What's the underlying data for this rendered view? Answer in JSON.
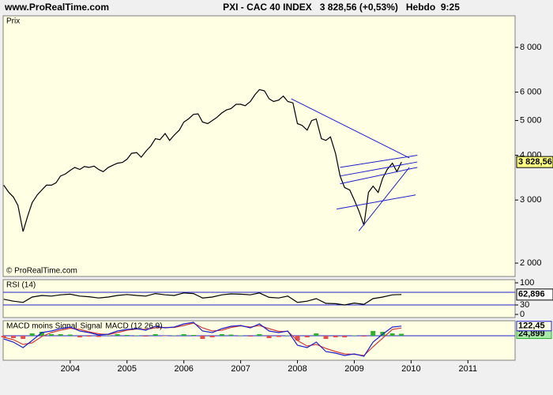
{
  "header": {
    "site": "www.ProRealTime.com",
    "title": "PXI - CAC 40 INDEX   3 828,56 (+0,53%)   Hebdo  9:25"
  },
  "chart_data": [
    {
      "type": "line",
      "ylabel": "Prix",
      "watermark": "© ProRealTime.com",
      "color": "#000000",
      "log_scale": true,
      "xlim": [
        2002.82,
        2011.83
      ],
      "ylim": [
        1835,
        9800
      ],
      "yticks": [
        {
          "value": 2000,
          "label": "2 000"
        },
        {
          "value": 3000,
          "label": "3 000"
        },
        {
          "value": 4000,
          "label": "4 000"
        },
        {
          "value": 5000,
          "label": "5 000"
        },
        {
          "value": 6000,
          "label": "6 000"
        },
        {
          "value": 8000,
          "label": "8 000"
        }
      ],
      "x": [
        2002.83,
        2002.92,
        2003.0,
        2003.08,
        2003.17,
        2003.25,
        2003.33,
        2003.42,
        2003.5,
        2003.58,
        2003.67,
        2003.75,
        2003.83,
        2003.92,
        2004.0,
        2004.08,
        2004.17,
        2004.25,
        2004.33,
        2004.42,
        2004.5,
        2004.58,
        2004.67,
        2004.75,
        2004.83,
        2004.92,
        2005.0,
        2005.08,
        2005.17,
        2005.25,
        2005.33,
        2005.42,
        2005.5,
        2005.58,
        2005.67,
        2005.75,
        2005.83,
        2005.92,
        2006.0,
        2006.08,
        2006.17,
        2006.25,
        2006.33,
        2006.42,
        2006.5,
        2006.58,
        2006.67,
        2006.75,
        2006.83,
        2006.92,
        2007.0,
        2007.08,
        2007.17,
        2007.25,
        2007.33,
        2007.42,
        2007.5,
        2007.58,
        2007.67,
        2007.75,
        2007.83,
        2007.92,
        2008.0,
        2008.08,
        2008.17,
        2008.25,
        2008.33,
        2008.42,
        2008.5,
        2008.58,
        2008.67,
        2008.75,
        2008.83,
        2008.92,
        2009.0,
        2009.08,
        2009.17,
        2009.25,
        2009.33,
        2009.42,
        2009.5,
        2009.58,
        2009.67,
        2009.75,
        2009.83
      ],
      "values": [
        3300,
        3150,
        3060,
        2900,
        2450,
        2700,
        2950,
        3100,
        3200,
        3300,
        3300,
        3350,
        3500,
        3550,
        3630,
        3700,
        3650,
        3720,
        3700,
        3730,
        3650,
        3600,
        3700,
        3750,
        3800,
        3820,
        3900,
        4050,
        4070,
        3950,
        4100,
        4250,
        4450,
        4420,
        4600,
        4400,
        4550,
        4700,
        4950,
        5050,
        5200,
        5220,
        4950,
        4900,
        5000,
        5100,
        5250,
        5350,
        5400,
        5550,
        5550,
        5500,
        5650,
        5900,
        6100,
        6050,
        5750,
        5650,
        5700,
        5850,
        5650,
        5600,
        4900,
        4850,
        4700,
        5000,
        5050,
        4450,
        4400,
        4500,
        4050,
        3500,
        3250,
        3200,
        3000,
        2800,
        2550,
        3150,
        3280,
        3150,
        3450,
        3650,
        3800,
        3600,
        3828.56
      ],
      "last_value": {
        "value": 3828.56,
        "label": "3 828,56"
      },
      "trendline_color": "#2020c8",
      "trendlines": [
        {
          "x": [
            2007.89,
            2009.97
          ],
          "y": [
            5750,
            3930
          ]
        },
        {
          "x": [
            2008.75,
            2010.11
          ],
          "y": [
            3700,
            4000
          ]
        },
        {
          "x": [
            2008.75,
            2010.11
          ],
          "y": [
            3500,
            3830
          ]
        },
        {
          "x": [
            2008.75,
            2010.11
          ],
          "y": [
            3330,
            3700
          ]
        },
        {
          "x": [
            2008.69,
            2010.08
          ],
          "y": [
            2830,
            3100
          ]
        },
        {
          "x": [
            2009.08,
            2009.97
          ],
          "y": [
            2460,
            3700
          ]
        }
      ]
    },
    {
      "type": "line",
      "label": "RSI (14)",
      "color": "#000000",
      "level_color": "#2020c8",
      "xlim": [
        2002.82,
        2011.83
      ],
      "ylim": [
        -10,
        110
      ],
      "yticks": [
        0,
        30,
        100
      ],
      "levels": [
        30,
        70
      ],
      "x": [
        2002.83,
        2003.0,
        2003.17,
        2003.33,
        2003.5,
        2003.67,
        2003.83,
        2004.0,
        2004.17,
        2004.33,
        2004.5,
        2004.67,
        2004.83,
        2005.0,
        2005.17,
        2005.33,
        2005.5,
        2005.67,
        2005.83,
        2006.0,
        2006.17,
        2006.33,
        2006.5,
        2006.67,
        2006.83,
        2007.0,
        2007.17,
        2007.33,
        2007.5,
        2007.67,
        2007.83,
        2008.0,
        2008.17,
        2008.33,
        2008.5,
        2008.67,
        2008.83,
        2009.0,
        2009.17,
        2009.33,
        2009.5,
        2009.67,
        2009.83
      ],
      "values": [
        48,
        42,
        38,
        55,
        60,
        58,
        62,
        64,
        58,
        56,
        52,
        55,
        60,
        63,
        60,
        58,
        66,
        62,
        60,
        68,
        66,
        52,
        55,
        62,
        65,
        64,
        62,
        68,
        54,
        52,
        58,
        38,
        42,
        50,
        35,
        34,
        30,
        36,
        32,
        50,
        55,
        62,
        62.896
      ],
      "last_value": {
        "value": 62.896,
        "label": "62,896"
      }
    },
    {
      "type": "macd",
      "level_color": "#2020c8",
      "levels": [
        0
      ],
      "xlim": [
        2002.82,
        2011.83
      ],
      "ylim": [
        -310,
        190
      ],
      "xticks": [
        2004,
        2005,
        2006,
        2007,
        2008,
        2009,
        2010,
        2011
      ],
      "x": [
        2002.83,
        2003.0,
        2003.17,
        2003.33,
        2003.5,
        2003.67,
        2003.83,
        2004.0,
        2004.17,
        2004.33,
        2004.5,
        2004.67,
        2004.83,
        2005.0,
        2005.17,
        2005.33,
        2005.5,
        2005.67,
        2005.83,
        2006.0,
        2006.17,
        2006.33,
        2006.5,
        2006.67,
        2006.83,
        2007.0,
        2007.17,
        2007.33,
        2007.5,
        2007.67,
        2007.83,
        2008.0,
        2008.17,
        2008.33,
        2008.5,
        2008.67,
        2008.83,
        2009.0,
        2009.17,
        2009.33,
        2009.5,
        2009.67,
        2009.83
      ],
      "series": [
        {
          "name": "MACD moins Signal",
          "color": "#30b030",
          "negative_color": "#e05050",
          "kind": "bar",
          "values": [
            -20,
            -30,
            -40,
            30,
            50,
            20,
            20,
            15,
            -20,
            -10,
            -15,
            5,
            20,
            10,
            5,
            -10,
            20,
            -5,
            5,
            20,
            10,
            -40,
            -20,
            20,
            15,
            5,
            -10,
            20,
            -30,
            -15,
            5,
            -60,
            -20,
            30,
            -40,
            -20,
            -20,
            5,
            -10,
            60,
            50,
            30,
            24.899
          ],
          "last_label": "24,899"
        },
        {
          "name": "Signal",
          "color": "#d04040",
          "kind": "line",
          "values": [
            -20,
            -50,
            -110,
            -90,
            -10,
            40,
            70,
            95,
            80,
            50,
            25,
            15,
            40,
            70,
            85,
            80,
            100,
            105,
            105,
            130,
            160,
            100,
            60,
            70,
            105,
            125,
            110,
            130,
            90,
            55,
            55,
            -60,
            -130,
            -110,
            -160,
            -200,
            -230,
            -235,
            -250,
            -140,
            -30,
            80,
            97.55
          ]
        },
        {
          "name": "MACD (12 26 9)",
          "color": "#2020c8",
          "kind": "line",
          "values": [
            -40,
            -80,
            -150,
            -60,
            40,
            60,
            90,
            110,
            60,
            40,
            10,
            20,
            60,
            80,
            90,
            70,
            120,
            100,
            110,
            150,
            170,
            60,
            40,
            90,
            120,
            130,
            100,
            150,
            60,
            40,
            60,
            -120,
            -150,
            -80,
            -200,
            -220,
            -250,
            -230,
            -260,
            -80,
            20,
            110,
            122.45
          ],
          "last_label": "122,45"
        }
      ]
    }
  ]
}
